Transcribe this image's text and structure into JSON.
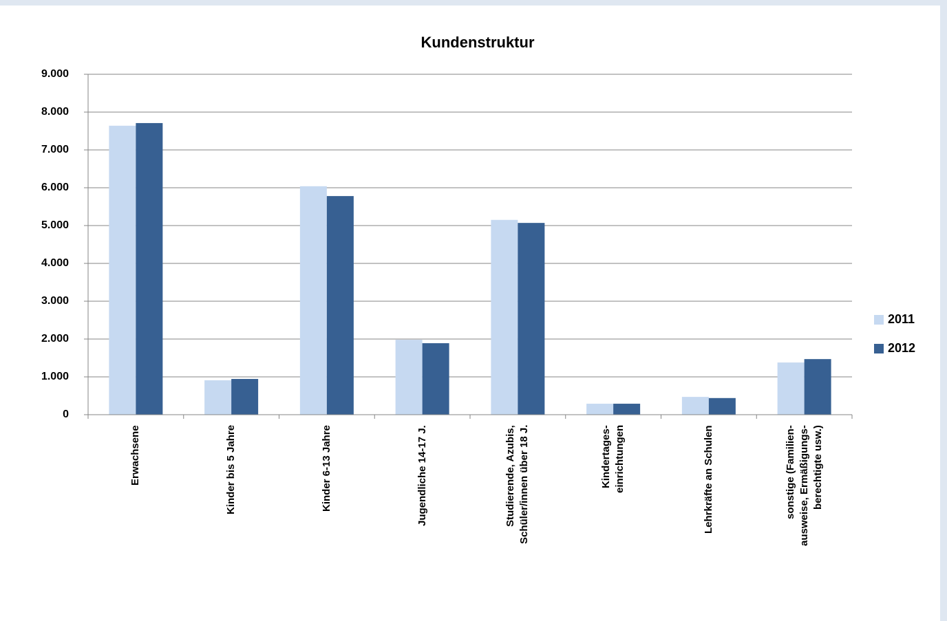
{
  "chart_data": {
    "type": "bar",
    "title": "Kundenstruktur",
    "categories": [
      "Erwachsene",
      "Kinder bis 5 Jahre",
      "Kinder 6-13 Jahre",
      "Jugendliche 14-17 J.",
      "Studierende, Azubis,\nSchüler/innen über 18 J.",
      "Kindertages-\neinrichtungen",
      "Lehrkräfte an Schulen",
      "sonstige (Familien-\nausweise, Ermäßigungs-\nberechtigte usw.)"
    ],
    "series": [
      {
        "name": "2011",
        "color": "#c6d9f1",
        "values": [
          7640,
          910,
          6040,
          1980,
          5150,
          290,
          470,
          1380
        ]
      },
      {
        "name": "2012",
        "color": "#376092",
        "values": [
          7710,
          945,
          5780,
          1890,
          5070,
          290,
          440,
          1470
        ]
      }
    ],
    "ylim": [
      0,
      9000
    ],
    "yticks": [
      0,
      {
        "value": 1000,
        "label": "1.000"
      },
      {
        "value": 2000,
        "label": "2.000"
      },
      {
        "value": 3000,
        "label": "3.000"
      },
      {
        "value": 4000,
        "label": "4.000"
      },
      {
        "value": 5000,
        "label": "5.000"
      },
      {
        "value": 6000,
        "label": "6.000"
      },
      {
        "value": 7000,
        "label": "7.000"
      },
      {
        "value": 8000,
        "label": "8.000"
      },
      {
        "value": 9000,
        "label": "9.000"
      }
    ],
    "grid": true,
    "legend": "right"
  }
}
